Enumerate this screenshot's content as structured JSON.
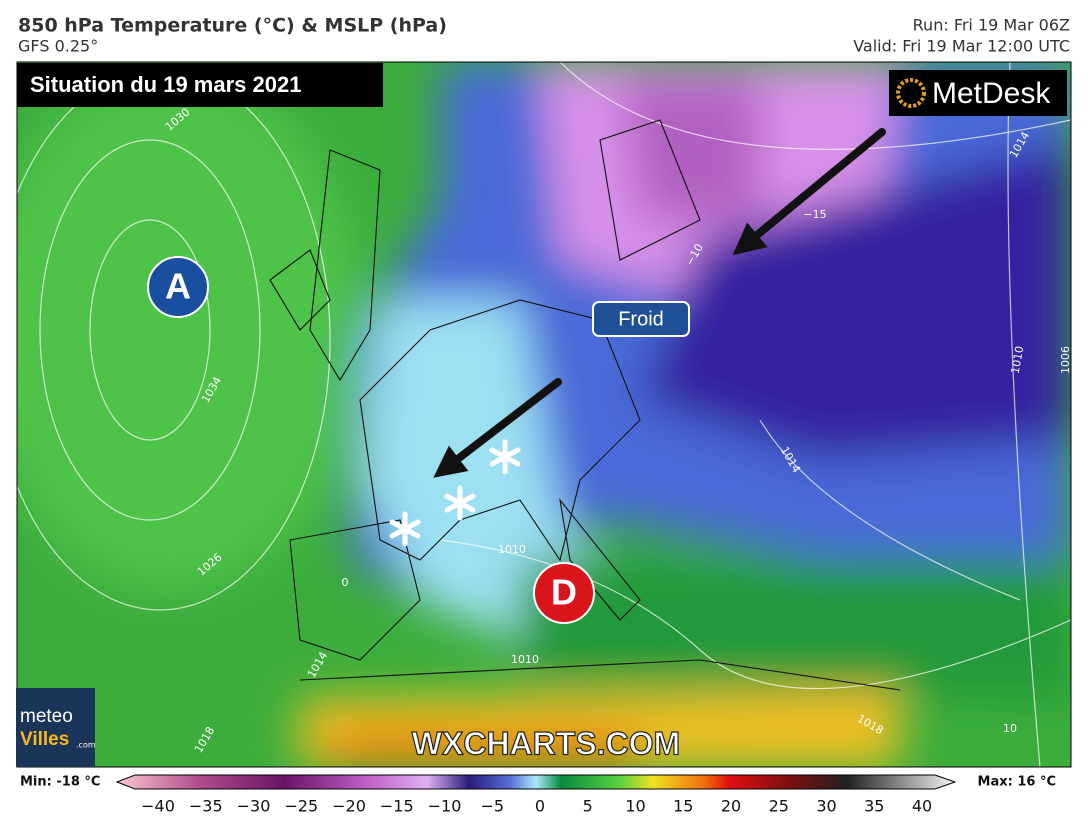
{
  "header": {
    "title": "850 hPa Temperature (°C) & MSLP (hPa)",
    "model": "GFS 0.25°",
    "run": "Run: Fri 19 Mar 06Z",
    "valid": "Valid: Fri 19 Mar 12:00 UTC"
  },
  "map": {
    "situation": "Situation du 19 mars 2021",
    "brand": "MetDesk",
    "high": "A",
    "low": "D",
    "annotation": "Froid",
    "watermark": "WXCHARTS.COM",
    "isobar_labels": [
      "1030",
      "1034",
      "1026",
      "1014",
      "1014",
      "1010",
      "1010",
      "1010",
      "1006",
      "1018",
      "1018",
      "1014",
      "−15",
      "−10",
      "0",
      "10"
    ]
  },
  "logo": {
    "line1": "meteo",
    "line2": "Villes",
    "suffix": ".com"
  },
  "colorbar": {
    "min": "Min: -18 °C",
    "max": "Max: 16 °C",
    "ticks": [
      "−40",
      "−35",
      "−30",
      "−25",
      "−20",
      "−15",
      "−10",
      "−5",
      "0",
      "5",
      "10",
      "15",
      "20",
      "25",
      "30",
      "35",
      "40"
    ]
  }
}
